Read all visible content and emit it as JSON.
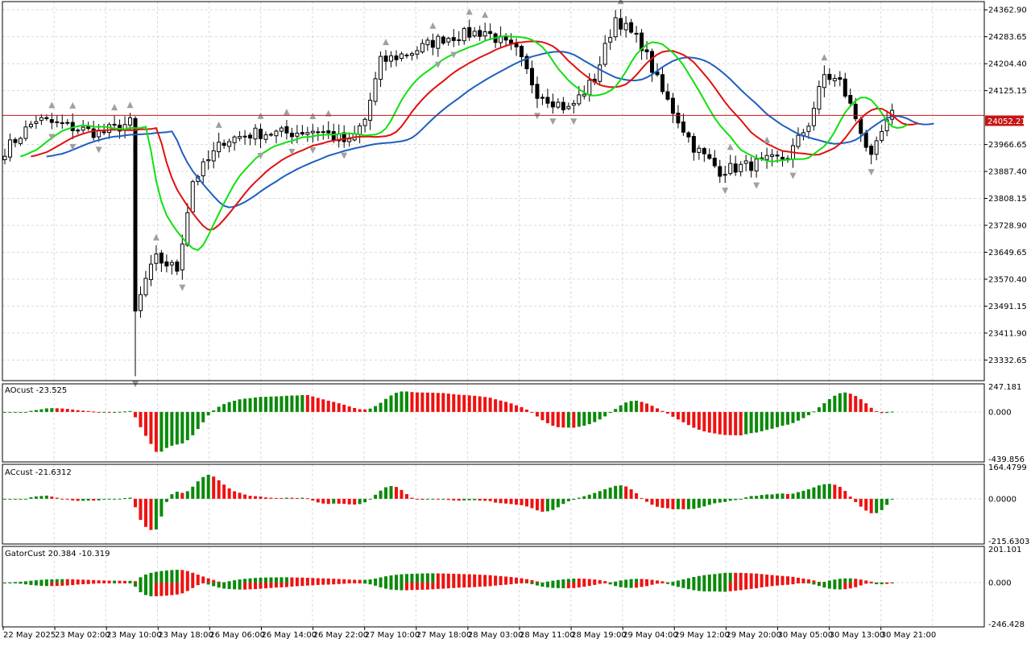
{
  "colors": {
    "background": "#ffffff",
    "grid": "#d8d8d8",
    "border": "#000000",
    "candle_up": "#ffffff",
    "candle_down": "#000000",
    "jaw": "#1f5fbf",
    "teeth": "#e01010",
    "lips": "#10e010",
    "bid_line": "#c81414",
    "price_tag": "#c81414",
    "hist_up": "#0a8a0a",
    "hist_down": "#ee1111",
    "fractal": "#a0a0a0"
  },
  "price_tag": "24052.21",
  "time_labels": [
    "22 May 2025",
    "23 May 02:00",
    "23 May 10:00",
    "23 May 18:00",
    "26 May 06:00",
    "26 May 14:00",
    "26 May 22:00",
    "27 May 10:00",
    "27 May 18:00",
    "28 May 03:00",
    "28 May 11:00",
    "28 May 19:00",
    "29 May 04:00",
    "29 May 12:00",
    "29 May 20:00",
    "30 May 05:00",
    "30 May 13:00",
    "30 May 21:00"
  ],
  "chart_data": [
    {
      "type": "candlestick",
      "symbol": "",
      "ylim": [
        23272,
        24387
      ],
      "y_ticks": [
        "24362.90",
        "24283.65",
        "24204.40",
        "24125.15",
        "23966.65",
        "23887.40",
        "23808.15",
        "23728.90",
        "23649.65",
        "23570.40",
        "23491.15",
        "23411.90",
        "23332.65"
      ],
      "bid_price": 24052.21,
      "series": [
        {
          "name": "",
          "kind": "alligator-jaw"
        },
        {
          "name": "",
          "kind": "alligator-teeth"
        },
        {
          "name": "",
          "kind": "alligator-lips"
        }
      ],
      "fractals": "up/down fractal arrows above highs and below lows"
    },
    {
      "type": "bar",
      "title": "AOcust -23.525",
      "y_ticks": [
        "247.181",
        "0.000",
        "-439.856"
      ],
      "ylim": [
        -439.856,
        247.181
      ],
      "last_value": -23.525
    },
    {
      "type": "bar",
      "title": "ACcust -21.6312",
      "y_ticks": [
        "164.4799",
        "0.0000",
        "-215.6303"
      ],
      "ylim": [
        -215.6303,
        164.4799
      ],
      "last_value": -21.6312
    },
    {
      "type": "bar",
      "title": "GatorCust 20.384 -10.319",
      "y_ticks": [
        "201.101",
        "0.000",
        "-246.428"
      ],
      "ylim": [
        -246.428,
        201.101
      ],
      "last_values": [
        20.384,
        -10.319
      ]
    }
  ]
}
